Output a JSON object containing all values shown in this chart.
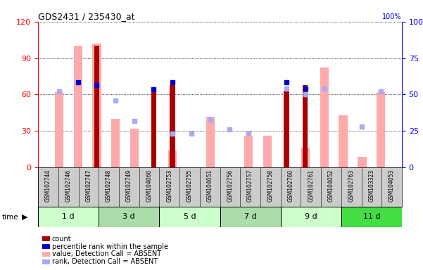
{
  "title": "GDS2431 / 235430_at",
  "samples": [
    "GSM102744",
    "GSM102746",
    "GSM102747",
    "GSM102748",
    "GSM102749",
    "GSM104060",
    "GSM102753",
    "GSM102755",
    "GSM104051",
    "GSM102756",
    "GSM102757",
    "GSM102758",
    "GSM102760",
    "GSM102761",
    "GSM104052",
    "GSM102763",
    "GSM103323",
    "GSM104053"
  ],
  "groups": [
    {
      "label": "1 d",
      "indices": [
        0,
        1,
        2
      ],
      "color": "#ccffcc"
    },
    {
      "label": "3 d",
      "indices": [
        3,
        4,
        5
      ],
      "color": "#aaeebb"
    },
    {
      "label": "5 d",
      "indices": [
        6,
        7,
        8
      ],
      "color": "#ccffcc"
    },
    {
      "label": "7 d",
      "indices": [
        9,
        10,
        11
      ],
      "color": "#aaeebb"
    },
    {
      "label": "9 d",
      "indices": [
        12,
        13,
        14
      ],
      "color": "#ccffcc"
    },
    {
      "label": "11 d",
      "indices": [
        15,
        16,
        17
      ],
      "color": "#44dd44"
    }
  ],
  "count_values": [
    null,
    null,
    100,
    null,
    null,
    63,
    68,
    null,
    null,
    null,
    null,
    null,
    63,
    68,
    null,
    null,
    null,
    null
  ],
  "percentile_values": [
    null,
    70,
    68,
    null,
    null,
    64,
    70,
    null,
    null,
    null,
    null,
    null,
    70,
    65,
    null,
    null,
    null,
    null
  ],
  "value_absent": [
    62,
    100,
    102,
    40,
    32,
    null,
    14,
    null,
    42,
    null,
    26,
    26,
    null,
    16,
    82,
    43,
    9,
    62
  ],
  "rank_absent_pct": [
    52,
    null,
    null,
    46,
    32,
    null,
    23,
    23,
    33,
    26,
    23,
    null,
    54,
    50,
    54,
    null,
    28,
    52
  ],
  "ylim_left": [
    0,
    120
  ],
  "ylim_right": [
    0,
    100
  ],
  "yticks_left": [
    0,
    30,
    60,
    90,
    120
  ],
  "yticks_right": [
    0,
    25,
    50,
    75,
    100
  ],
  "color_count": "#aa0000",
  "color_percentile": "#0000cc",
  "color_value_absent": "#ffaaaa",
  "color_rank_absent": "#aaaaee",
  "facecolor": "#ffffff",
  "grid_color": "#000000",
  "legend_items": [
    {
      "color": "#aa0000",
      "label": "count"
    },
    {
      "color": "#0000cc",
      "label": "percentile rank within the sample"
    },
    {
      "color": "#ffaaaa",
      "label": "value, Detection Call = ABSENT"
    },
    {
      "color": "#aaaaee",
      "label": "rank, Detection Call = ABSENT"
    }
  ]
}
